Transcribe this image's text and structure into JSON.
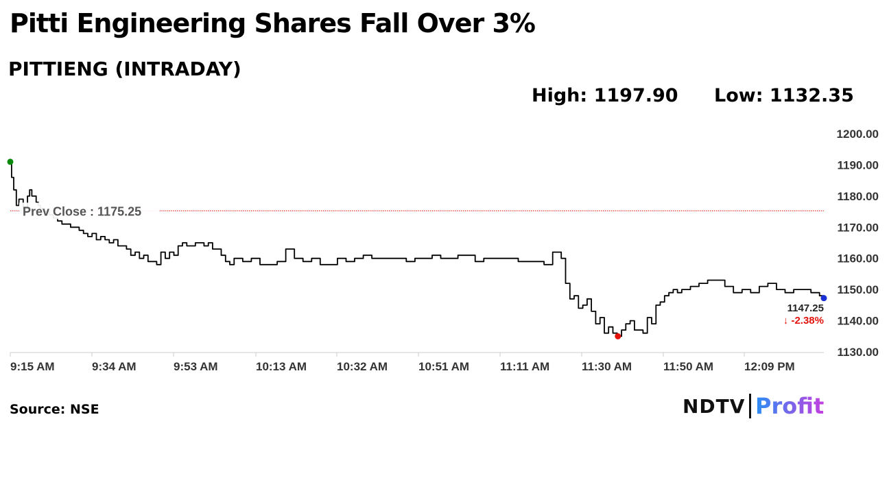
{
  "header": {
    "title": "Pitti Engineering Shares Fall Over 3%",
    "subtitle": "PITTIENG (INTRADAY)",
    "high_label": "High:",
    "high_value": "1197.90",
    "low_label": "Low:",
    "low_value": "1132.35"
  },
  "footer": {
    "source": "Source: NSE",
    "logo_left": "NDTV",
    "logo_right": "Profit"
  },
  "colors": {
    "line": "#000000",
    "start_marker": "#0a8a0a",
    "low_marker": "#e3120b",
    "end_marker": "#1a2fd6",
    "prev_close_line": "#e3120b",
    "change_text": "#e3120b",
    "axis": "#cccccc",
    "logo_gradient": [
      "#2a8ef5",
      "#c43fe0"
    ]
  },
  "chart_data": {
    "type": "line",
    "title": "PITTIENG (INTRADAY)",
    "ylim": [
      1130,
      1200
    ],
    "yticks": [
      "1200.00",
      "1190.00",
      "1180.00",
      "1170.00",
      "1160.00",
      "1150.00",
      "1140.00",
      "1130.00"
    ],
    "xticks": [
      "9:15 AM",
      "9:34 AM",
      "9:53 AM",
      "10:13 AM",
      "10:32 AM",
      "10:51 AM",
      "11:11 AM",
      "11:30 AM",
      "11:50 AM",
      "12:09 PM"
    ],
    "xlim_minutes": [
      0,
      189
    ],
    "grid": false,
    "prev_close": 1175.25,
    "prev_close_label": "Prev Close : 1175.25",
    "last_value_label": "1147.25",
    "change_label": "↓ -2.38%",
    "series": [
      {
        "x": [
          0,
          0.3,
          0.8,
          1.4,
          2,
          3,
          4,
          4.5,
          5,
          6,
          6.5,
          7,
          8,
          9,
          10,
          11,
          12,
          13,
          14,
          15,
          16,
          17,
          18,
          19,
          20,
          21,
          22,
          23,
          24,
          25,
          26,
          27,
          28,
          29,
          30,
          31,
          32,
          34,
          35,
          36,
          37,
          38,
          39,
          40,
          41,
          42,
          43,
          44,
          45,
          46,
          47,
          48,
          49,
          50,
          51,
          52,
          54,
          56,
          58,
          60,
          62,
          64,
          66,
          68,
          70,
          72,
          74,
          76,
          78,
          80,
          82,
          84,
          86,
          88,
          90,
          92,
          94,
          96,
          98,
          100,
          102,
          104,
          106,
          108,
          110,
          112,
          114,
          116,
          118,
          120,
          122,
          124,
          126,
          128,
          129,
          130,
          131,
          132,
          133,
          134,
          135,
          136,
          137,
          138,
          139,
          140,
          141,
          142,
          143,
          144,
          145,
          146,
          147,
          148,
          149,
          150,
          151,
          152,
          153,
          154,
          155,
          156,
          158,
          160,
          162,
          164,
          166,
          168,
          170,
          172,
          174,
          176,
          178,
          180,
          182,
          184,
          186,
          188,
          189
        ],
        "y": [
          1191,
          1186,
          1182,
          1177,
          1179,
          1176,
          1180,
          1182,
          1180,
          1178,
          1177,
          1176,
          1175,
          1174,
          1173,
          1172,
          1171,
          1171,
          1170,
          1170,
          1169,
          1168,
          1167,
          1168,
          1166,
          1167,
          1166,
          1165,
          1166,
          1164,
          1164,
          1163,
          1161,
          1162,
          1160,
          1161,
          1159,
          1158,
          1162,
          1160,
          1162,
          1161,
          1164,
          1165,
          1164,
          1164,
          1165,
          1165,
          1164,
          1165,
          1163,
          1163,
          1161,
          1159,
          1158,
          1160,
          1159,
          1160,
          1158,
          1158,
          1159,
          1163,
          1160,
          1159,
          1160,
          1158,
          1158,
          1160,
          1159,
          1160,
          1161,
          1160,
          1160,
          1160,
          1160,
          1159,
          1160,
          1160,
          1161,
          1160,
          1160,
          1161,
          1161,
          1159,
          1160,
          1160,
          1160,
          1160,
          1159,
          1159,
          1159,
          1158,
          1162,
          1160,
          1152,
          1147,
          1148,
          1144,
          1145,
          1147,
          1143,
          1139,
          1141,
          1136,
          1138,
          1136,
          1135,
          1137,
          1139,
          1140,
          1137,
          1137,
          1136,
          1141,
          1139,
          1145,
          1146,
          1148,
          1149,
          1150,
          1149,
          1150,
          1151,
          1152,
          1153,
          1153,
          1151,
          1149,
          1150,
          1149,
          1151,
          1152,
          1150,
          1149,
          1150,
          1150,
          1149,
          1148,
          1147.25
        ]
      }
    ]
  }
}
